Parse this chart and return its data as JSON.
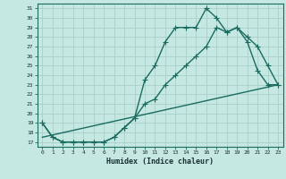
{
  "xlabel": "Humidex (Indice chaleur)",
  "bg_color": "#c5e8e2",
  "grid_color": "#aacfca",
  "line_color": "#1a6b60",
  "xlim": [
    -0.5,
    23.5
  ],
  "ylim": [
    16.5,
    31.5
  ],
  "yticks": [
    17,
    18,
    19,
    20,
    21,
    22,
    23,
    24,
    25,
    26,
    27,
    28,
    29,
    30,
    31
  ],
  "xticks": [
    0,
    1,
    2,
    3,
    4,
    5,
    6,
    7,
    8,
    9,
    10,
    11,
    12,
    13,
    14,
    15,
    16,
    17,
    18,
    19,
    20,
    21,
    22,
    23
  ],
  "line1_x": [
    0,
    1,
    2,
    3,
    4,
    5,
    6,
    7,
    8,
    9,
    10,
    11,
    12,
    13,
    14,
    15,
    16,
    17,
    18,
    19,
    20,
    21,
    22,
    23
  ],
  "line1_y": [
    19,
    17.5,
    17,
    17,
    17,
    17,
    17,
    17.5,
    18.5,
    19.5,
    23.5,
    25,
    27.5,
    29,
    29,
    29,
    31,
    30,
    28.5,
    29,
    27.5,
    24.5,
    23,
    23
  ],
  "line2_x": [
    0,
    1,
    2,
    3,
    4,
    5,
    6,
    7,
    8,
    9,
    10,
    11,
    12,
    13,
    14,
    15,
    16,
    17,
    18,
    19,
    20,
    21,
    22,
    23
  ],
  "line2_y": [
    19,
    17.5,
    17,
    17,
    17,
    17,
    17,
    17.5,
    18.5,
    19.5,
    21,
    21.5,
    23,
    24,
    25,
    26,
    27,
    29,
    28.5,
    29,
    28,
    27,
    25,
    23
  ],
  "line3_x": [
    0,
    23
  ],
  "line3_y": [
    17.5,
    23
  ],
  "marker_size": 2.5,
  "line_width": 1.0
}
